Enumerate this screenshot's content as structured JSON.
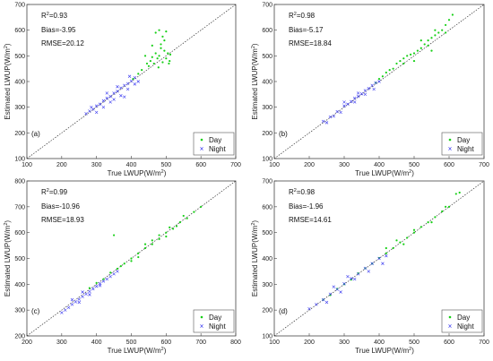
{
  "chart_data": [
    {
      "type": "scatter",
      "panel_label": "(a)",
      "xlabel": "True LWUP(W/m",
      "ylabel": "Estimated LWUP(W/m",
      "label_unit_sup": "2",
      "label_close": ")",
      "xlim": [
        100,
        700
      ],
      "ylim": [
        100,
        700
      ],
      "xticks": [
        100,
        200,
        300,
        400,
        500,
        600,
        700
      ],
      "yticks": [
        100,
        200,
        300,
        400,
        500,
        600,
        700
      ],
      "stats": {
        "r2_prefix": "R",
        "r2_sup": "2",
        "r2_value": "=0.93",
        "bias": "Bias=-3.95",
        "rmse": "RMSE=20.12"
      },
      "legend": {
        "position": "bottom-right",
        "entries": [
          "Day",
          "Night"
        ]
      },
      "series": [
        {
          "name": "Day",
          "color": "#18d018",
          "marker": "dot",
          "points": [
            [
              405,
              410
            ],
            [
              420,
              430
            ],
            [
              430,
              445
            ],
            [
              445,
              470
            ],
            [
              455,
              480
            ],
            [
              460,
              495
            ],
            [
              465,
              470
            ],
            [
              470,
              510
            ],
            [
              475,
              490
            ],
            [
              480,
              500
            ],
            [
              485,
              530
            ],
            [
              490,
              475
            ],
            [
              495,
              520
            ],
            [
              500,
              490
            ],
            [
              505,
              510
            ],
            [
              510,
              480
            ],
            [
              470,
              590
            ],
            [
              480,
              600
            ],
            [
              490,
              575
            ],
            [
              500,
              595
            ],
            [
              495,
              560
            ],
            [
              460,
              540
            ],
            [
              440,
              500
            ],
            [
              450,
              460
            ],
            [
              485,
              545
            ],
            [
              508,
              470
            ],
            [
              512,
              505
            ],
            [
              478,
              455
            ]
          ]
        },
        {
          "name": "Night",
          "color": "#3a3af0",
          "marker": "x",
          "points": [
            [
              270,
              275
            ],
            [
              280,
              285
            ],
            [
              290,
              292
            ],
            [
              300,
              305
            ],
            [
              310,
              312
            ],
            [
              320,
              325
            ],
            [
              330,
              335
            ],
            [
              340,
              342
            ],
            [
              350,
              355
            ],
            [
              360,
              362
            ],
            [
              370,
              375
            ],
            [
              380,
              385
            ],
            [
              390,
              392
            ],
            [
              400,
              402
            ],
            [
              410,
              415
            ],
            [
              300,
              280
            ],
            [
              320,
              300
            ],
            [
              350,
              330
            ],
            [
              370,
              345
            ],
            [
              390,
              370
            ],
            [
              410,
              390
            ],
            [
              420,
              400
            ],
            [
              285,
              300
            ],
            [
              330,
              355
            ],
            [
              360,
              380
            ],
            [
              395,
              420
            ],
            [
              380,
              340
            ],
            [
              340,
              320
            ]
          ]
        }
      ]
    },
    {
      "type": "scatter",
      "panel_label": "(b)",
      "xlabel": "True LWUP(W/m",
      "ylabel": "Estimated LWUP(W/m",
      "label_unit_sup": "2",
      "label_close": ")",
      "xlim": [
        100,
        700
      ],
      "ylim": [
        100,
        700
      ],
      "xticks": [
        100,
        200,
        300,
        400,
        500,
        600,
        700
      ],
      "yticks": [
        100,
        200,
        300,
        400,
        500,
        600,
        700
      ],
      "stats": {
        "r2_prefix": "R",
        "r2_sup": "2",
        "r2_value": "=0.98",
        "bias": "Bias=-5.17",
        "rmse": "RMSE=18.84"
      },
      "legend": {
        "position": "bottom-right",
        "entries": [
          "Day",
          "Night"
        ]
      },
      "series": [
        {
          "name": "Day",
          "color": "#18d018",
          "marker": "dot",
          "points": [
            [
              390,
              395
            ],
            [
              400,
              410
            ],
            [
              410,
              420
            ],
            [
              420,
              435
            ],
            [
              430,
              445
            ],
            [
              440,
              450
            ],
            [
              450,
              470
            ],
            [
              460,
              480
            ],
            [
              470,
              490
            ],
            [
              480,
              500
            ],
            [
              490,
              505
            ],
            [
              500,
              510
            ],
            [
              510,
              520
            ],
            [
              520,
              530
            ],
            [
              530,
              545
            ],
            [
              540,
              560
            ],
            [
              550,
              570
            ],
            [
              560,
              580
            ],
            [
              570,
              590
            ],
            [
              580,
              600
            ],
            [
              590,
              620
            ],
            [
              600,
              640
            ],
            [
              610,
              660
            ],
            [
              520,
              560
            ],
            [
              540,
              540
            ],
            [
              550,
              520
            ],
            [
              500,
              480
            ],
            [
              470,
              470
            ],
            [
              560,
              600
            ],
            [
              590,
              590
            ]
          ]
        },
        {
          "name": "Night",
          "color": "#3a3af0",
          "marker": "x",
          "points": [
            [
              240,
              245
            ],
            [
              260,
              262
            ],
            [
              280,
              283
            ],
            [
              300,
              305
            ],
            [
              310,
              312
            ],
            [
              320,
              322
            ],
            [
              330,
              335
            ],
            [
              340,
              342
            ],
            [
              350,
              352
            ],
            [
              360,
              365
            ],
            [
              370,
              373
            ],
            [
              380,
              385
            ],
            [
              390,
              395
            ],
            [
              400,
              400
            ],
            [
              250,
              240
            ],
            [
              290,
              280
            ],
            [
              330,
              320
            ],
            [
              360,
              350
            ],
            [
              385,
              370
            ],
            [
              300,
              320
            ],
            [
              340,
              355
            ],
            [
              270,
              265
            ]
          ]
        }
      ]
    },
    {
      "type": "scatter",
      "panel_label": "(c)",
      "xlabel": "True LWUP(W/m",
      "ylabel": "Estimated LWUP(W/m",
      "label_unit_sup": "2",
      "label_close": ")",
      "xlim": [
        200,
        800
      ],
      "ylim": [
        200,
        800
      ],
      "xticks": [
        200,
        300,
        400,
        500,
        600,
        700,
        800
      ],
      "yticks": [
        200,
        300,
        400,
        500,
        600,
        700,
        800
      ],
      "stats": {
        "r2_prefix": "R",
        "r2_sup": "2",
        "r2_value": "=0.99",
        "bias": "Bias=-10.96",
        "rmse": "RMSE=18.93"
      },
      "legend": {
        "position": "bottom-right",
        "entries": [
          "Day",
          "Night"
        ]
      },
      "series": [
        {
          "name": "Day",
          "color": "#18d018",
          "marker": "dot",
          "points": [
            [
              380,
              385
            ],
            [
              400,
              405
            ],
            [
              420,
              420
            ],
            [
              440,
              445
            ],
            [
              460,
              460
            ],
            [
              480,
              480
            ],
            [
              500,
              500
            ],
            [
              520,
              520
            ],
            [
              540,
              540
            ],
            [
              560,
              555
            ],
            [
              580,
              575
            ],
            [
              600,
              600
            ],
            [
              620,
              615
            ],
            [
              640,
              640
            ],
            [
              660,
              655
            ],
            [
              680,
              680
            ],
            [
              700,
              700
            ],
            [
              450,
              590
            ],
            [
              470,
              470
            ],
            [
              520,
              505
            ],
            [
              560,
              570
            ],
            [
              600,
              585
            ],
            [
              630,
              625
            ],
            [
              650,
              665
            ],
            [
              500,
              490
            ],
            [
              540,
              555
            ],
            [
              580,
              590
            ],
            [
              610,
              620
            ]
          ]
        },
        {
          "name": "Night",
          "color": "#3a3af0",
          "marker": "x",
          "points": [
            [
              300,
              290
            ],
            [
              310,
              300
            ],
            [
              320,
              310
            ],
            [
              330,
              322
            ],
            [
              340,
              332
            ],
            [
              350,
              342
            ],
            [
              360,
              352
            ],
            [
              370,
              362
            ],
            [
              380,
              372
            ],
            [
              390,
              382
            ],
            [
              400,
              392
            ],
            [
              410,
              402
            ],
            [
              420,
              412
            ],
            [
              430,
              420
            ],
            [
              440,
              430
            ],
            [
              450,
              440
            ],
            [
              460,
              450
            ],
            [
              350,
              330
            ],
            [
              380,
              360
            ],
            [
              410,
              395
            ],
            [
              330,
              340
            ],
            [
              360,
              370
            ]
          ]
        }
      ]
    },
    {
      "type": "scatter",
      "panel_label": "(d)",
      "xlabel": "True LWUP(W/m",
      "ylabel": "Estimated LWUP(W/m",
      "label_unit_sup": "2",
      "label_close": ")",
      "xlim": [
        100,
        700
      ],
      "ylim": [
        100,
        700
      ],
      "xticks": [
        100,
        200,
        300,
        400,
        500,
        600,
        700
      ],
      "yticks": [
        100,
        200,
        300,
        400,
        500,
        600,
        700
      ],
      "stats": {
        "r2_prefix": "R",
        "r2_sup": "2",
        "r2_value": "=0.98",
        "bias": "Bias=-1.96",
        "rmse": "RMSE=14.61"
      },
      "legend": {
        "position": "bottom-right",
        "entries": [
          "Day",
          "Night"
        ]
      },
      "series": [
        {
          "name": "Day",
          "color": "#18d018",
          "marker": "dot",
          "points": [
            [
              240,
              240
            ],
            [
              260,
              258
            ],
            [
              280,
              282
            ],
            [
              300,
              300
            ],
            [
              320,
              318
            ],
            [
              340,
              342
            ],
            [
              360,
              362
            ],
            [
              380,
              380
            ],
            [
              400,
              402
            ],
            [
              420,
              420
            ],
            [
              440,
              440
            ],
            [
              460,
              462
            ],
            [
              480,
              480
            ],
            [
              500,
              500
            ],
            [
              520,
              522
            ],
            [
              540,
              540
            ],
            [
              560,
              560
            ],
            [
              580,
              582
            ],
            [
              600,
              600
            ],
            [
              620,
              650
            ],
            [
              630,
              655
            ],
            [
              450,
              470
            ],
            [
              500,
              510
            ],
            [
              550,
              540
            ],
            [
              590,
              600
            ],
            [
              470,
              455
            ],
            [
              420,
              440
            ]
          ]
        },
        {
          "name": "Night",
          "color": "#3a3af0",
          "marker": "x",
          "points": [
            [
              200,
              205
            ],
            [
              220,
              222
            ],
            [
              240,
              240
            ],
            [
              260,
              262
            ],
            [
              280,
              280
            ],
            [
              300,
              302
            ],
            [
              320,
              322
            ],
            [
              340,
              340
            ],
            [
              360,
              362
            ],
            [
              380,
              380
            ],
            [
              400,
              400
            ],
            [
              420,
              410
            ],
            [
              250,
              230
            ],
            [
              290,
              270
            ],
            [
              330,
              320
            ],
            [
              370,
              350
            ],
            [
              410,
              380
            ],
            [
              270,
              290
            ],
            [
              310,
              330
            ]
          ]
        }
      ]
    }
  ]
}
